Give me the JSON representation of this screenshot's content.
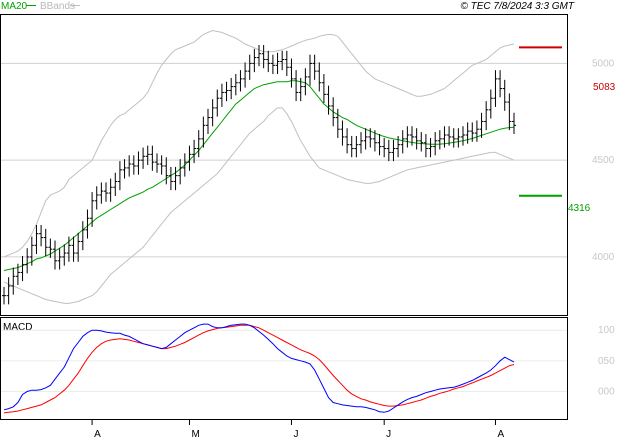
{
  "header": {
    "legend_ma": "MA20",
    "legend_bb": "BBands",
    "timestamp": "© TEC 7/8/2024 3:3 GMT"
  },
  "macd_panel": {
    "label": "MACD"
  },
  "colors": {
    "price_bar": "#000000",
    "ma20": "#00a000",
    "bbands": "#c0c0c0",
    "macd_line": "#0000ff",
    "signal_line": "#ff0000",
    "resistance": "#cc0000",
    "support": "#00a000",
    "grid": "#d0d0d0"
  },
  "levels": {
    "resistance": {
      "label": "5083",
      "value": 5083
    },
    "support": {
      "label": "4316",
      "value": 4316
    }
  },
  "chart_data": [
    {
      "type": "line",
      "panel": "price",
      "ylim": [
        3700,
        5250
      ],
      "y_ticks": [
        {
          "value": 5000,
          "label": "5000"
        },
        {
          "value": 4500,
          "label": "4500"
        },
        {
          "value": 4000,
          "label": "4000"
        }
      ],
      "x_ticks": [
        {
          "index": 19,
          "label": "A"
        },
        {
          "index": 40,
          "label": "M"
        },
        {
          "index": 62,
          "label": "J"
        },
        {
          "index": 82,
          "label": "J"
        },
        {
          "index": 106,
          "label": "A"
        }
      ],
      "ohlc_close": [
        3800,
        3850,
        3900,
        3920,
        3960,
        4000,
        4060,
        4120,
        4100,
        4050,
        4040,
        3980,
        4000,
        4020,
        4060,
        4020,
        4080,
        4140,
        4200,
        4290,
        4320,
        4340,
        4330,
        4360,
        4390,
        4450,
        4460,
        4480,
        4470,
        4500,
        4520,
        4530,
        4490,
        4480,
        4470,
        4420,
        4390,
        4420,
        4460,
        4490,
        4530,
        4560,
        4610,
        4680,
        4720,
        4770,
        4820,
        4850,
        4860,
        4880,
        4900,
        4920,
        4960,
        5000,
        5030,
        5050,
        5020,
        5000,
        4990,
        5010,
        5020,
        4980,
        4920,
        4850,
        4880,
        4930,
        5000,
        4960,
        4900,
        4840,
        4780,
        4720,
        4660,
        4620,
        4580,
        4560,
        4580,
        4600,
        4620,
        4610,
        4590,
        4570,
        4560,
        4540,
        4560,
        4580,
        4610,
        4630,
        4620,
        4600,
        4590,
        4560,
        4570,
        4600,
        4610,
        4630,
        4620,
        4610,
        4620,
        4630,
        4650,
        4640,
        4660,
        4700,
        4760,
        4820,
        4920,
        4870,
        4800,
        4700,
        4680
      ],
      "series": [
        {
          "name": "MA20",
          "values": [
            3930,
            3935,
            3940,
            3945,
            3955,
            3965,
            3975,
            3990,
            3995,
            4005,
            4015,
            4030,
            4045,
            4060,
            4080,
            4100,
            4120,
            4140,
            4160,
            4180,
            4200,
            4215,
            4230,
            4245,
            4260,
            4275,
            4290,
            4305,
            4315,
            4325,
            4335,
            4350,
            4360,
            4375,
            4390,
            4405,
            4420,
            4435,
            4455,
            4475,
            4500,
            4525,
            4550,
            4580,
            4610,
            4640,
            4670,
            4700,
            4730,
            4760,
            4790,
            4810,
            4830,
            4850,
            4870,
            4880,
            4890,
            4895,
            4900,
            4905,
            4905,
            4905,
            4910,
            4910,
            4905,
            4900,
            4880,
            4850,
            4820,
            4790,
            4770,
            4750,
            4735,
            4720,
            4710,
            4695,
            4680,
            4670,
            4660,
            4650,
            4640,
            4630,
            4622,
            4615,
            4610,
            4606,
            4600,
            4596,
            4592,
            4588,
            4586,
            4584,
            4582,
            4582,
            4583,
            4585,
            4588,
            4592,
            4596,
            4600,
            4606,
            4612,
            4620,
            4628,
            4636,
            4644,
            4652,
            4660,
            4665,
            4668,
            4670
          ]
        },
        {
          "name": "BBands",
          "band": "upper",
          "values": [
            4000,
            4010,
            4020,
            4030,
            4050,
            4080,
            4120,
            4170,
            4230,
            4290,
            4320,
            4330,
            4340,
            4360,
            4400,
            4420,
            4440,
            4460,
            4480,
            4500,
            4550,
            4600,
            4640,
            4680,
            4710,
            4730,
            4740,
            4760,
            4780,
            4800,
            4820,
            4850,
            4900,
            4950,
            4990,
            5020,
            5050,
            5070,
            5080,
            5090,
            5100,
            5110,
            5130,
            5150,
            5160,
            5170,
            5165,
            5160,
            5150,
            5140,
            5130,
            5115,
            5100,
            5090,
            5080,
            5070,
            5060,
            5060,
            5060,
            5065,
            5070,
            5080,
            5090,
            5100,
            5110,
            5120,
            5125,
            5130,
            5140,
            5145,
            5150,
            5148,
            5140,
            5110,
            5080,
            5050,
            5020,
            4990,
            4960,
            4940,
            4920,
            4910,
            4900,
            4890,
            4880,
            4870,
            4860,
            4850,
            4840,
            4830,
            4830,
            4835,
            4840,
            4850,
            4860,
            4870,
            4890,
            4910,
            4930,
            4950,
            4970,
            4990,
            5000,
            5010,
            5020,
            5040,
            5060,
            5080,
            5090,
            5095,
            5100
          ]
        },
        {
          "name": "BBands",
          "band": "lower",
          "values": [
            3870,
            3860,
            3850,
            3840,
            3830,
            3820,
            3810,
            3800,
            3790,
            3780,
            3775,
            3770,
            3765,
            3760,
            3760,
            3765,
            3770,
            3780,
            3790,
            3800,
            3820,
            3850,
            3880,
            3910,
            3930,
            3950,
            3970,
            3990,
            4010,
            4030,
            4050,
            4080,
            4110,
            4140,
            4170,
            4200,
            4230,
            4250,
            4270,
            4290,
            4310,
            4330,
            4350,
            4370,
            4390,
            4410,
            4430,
            4460,
            4490,
            4520,
            4550,
            4580,
            4610,
            4640,
            4660,
            4680,
            4700,
            4730,
            4750,
            4770,
            4770,
            4740,
            4700,
            4650,
            4600,
            4560,
            4520,
            4490,
            4460,
            4450,
            4440,
            4430,
            4420,
            4410,
            4400,
            4395,
            4390,
            4385,
            4380,
            4380,
            4385,
            4390,
            4400,
            4410,
            4420,
            4430,
            4440,
            4450,
            4455,
            4460,
            4465,
            4470,
            4475,
            4480,
            4485,
            4490,
            4495,
            4500,
            4505,
            4510,
            4515,
            4520,
            4525,
            4530,
            4535,
            4540,
            4540,
            4530,
            4520,
            4510,
            4500
          ]
        }
      ]
    },
    {
      "type": "line",
      "panel": "macd",
      "ylim": [
        -45,
        120
      ],
      "y_ticks": [
        {
          "value": 100,
          "label": "100"
        },
        {
          "value": 50,
          "label": "050"
        },
        {
          "value": 0,
          "label": "000"
        }
      ],
      "series": [
        {
          "name": "MACD",
          "values": [
            -30,
            -28,
            -25,
            -18,
            -5,
            0,
            2,
            2,
            3,
            6,
            10,
            20,
            30,
            40,
            55,
            70,
            80,
            90,
            96,
            100,
            100,
            99,
            97,
            96,
            95,
            95,
            92,
            90,
            86,
            82,
            78,
            76,
            74,
            72,
            70,
            72,
            78,
            84,
            90,
            96,
            100,
            104,
            108,
            110,
            110,
            106,
            104,
            104,
            106,
            108,
            109,
            110,
            110,
            108,
            104,
            98,
            92,
            85,
            78,
            70,
            64,
            58,
            54,
            52,
            50,
            48,
            45,
            35,
            20,
            5,
            -10,
            -18,
            -20,
            -22,
            -23,
            -24,
            -25,
            -25,
            -26,
            -28,
            -30,
            -33,
            -34,
            -32,
            -27,
            -22,
            -17,
            -13,
            -10,
            -8,
            -5,
            -2,
            0,
            2,
            4,
            5,
            6,
            7,
            9,
            12,
            15,
            18,
            22,
            26,
            30,
            35,
            42,
            50,
            56,
            52,
            48
          ]
        },
        {
          "name": "Signal",
          "values": [
            -35,
            -34,
            -33,
            -32,
            -30,
            -28,
            -26,
            -24,
            -22,
            -18,
            -14,
            -10,
            -4,
            2,
            10,
            20,
            30,
            42,
            54,
            64,
            72,
            78,
            82,
            84,
            85,
            86,
            85,
            84,
            82,
            80,
            78,
            76,
            74,
            72,
            70,
            70,
            72,
            74,
            77,
            80,
            84,
            88,
            92,
            96,
            99,
            101,
            103,
            104,
            105,
            106,
            107,
            108,
            108,
            108,
            106,
            104,
            100,
            96,
            92,
            88,
            84,
            80,
            76,
            72,
            68,
            65,
            62,
            58,
            52,
            44,
            35,
            26,
            18,
            10,
            2,
            -4,
            -8,
            -12,
            -14,
            -17,
            -19,
            -21,
            -23,
            -24,
            -24,
            -23,
            -22,
            -20,
            -18,
            -16,
            -14,
            -11,
            -8,
            -6,
            -3,
            -1,
            1,
            4,
            6,
            8,
            11,
            14,
            17,
            20,
            23,
            26,
            30,
            34,
            38,
            42,
            44
          ]
        }
      ]
    }
  ]
}
